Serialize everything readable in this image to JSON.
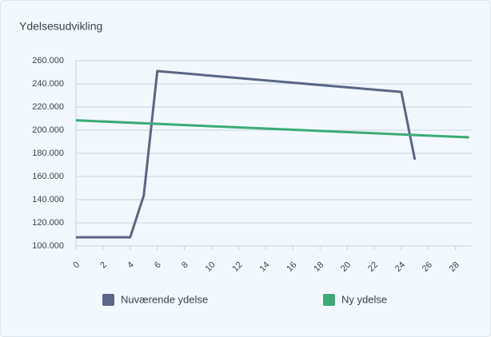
{
  "chart_data": {
    "type": "line",
    "title": "Ydelsesudvikling",
    "series": [
      {
        "name": "Nuværende ydelse",
        "color": "#5c6785",
        "x": [
          0,
          4,
          5,
          6,
          24,
          25
        ],
        "values": [
          107500,
          107500,
          143500,
          251000,
          233000,
          174500
        ]
      },
      {
        "name": "Ny ydelse",
        "color": "#3daa78",
        "x": [
          0,
          29
        ],
        "values": [
          208500,
          193800
        ]
      }
    ],
    "xlim": [
      0,
      29.2
    ],
    "xticks": [
      0,
      2,
      4,
      6,
      8,
      10,
      12,
      14,
      16,
      18,
      20,
      22,
      24,
      26,
      28
    ],
    "ylim": [
      100000,
      260000
    ],
    "yticks": [
      {
        "value": 100000,
        "label": "100.000"
      },
      {
        "value": 120000,
        "label": "120.000"
      },
      {
        "value": 140000,
        "label": "140.000"
      },
      {
        "value": 160000,
        "label": "160.000"
      },
      {
        "value": 180000,
        "label": "180.000"
      },
      {
        "value": 200000,
        "label": "200.000"
      },
      {
        "value": 220000,
        "label": "220.000"
      },
      {
        "value": 240000,
        "label": "240.000"
      },
      {
        "value": 260000,
        "label": "260.000"
      }
    ],
    "grid": true
  }
}
